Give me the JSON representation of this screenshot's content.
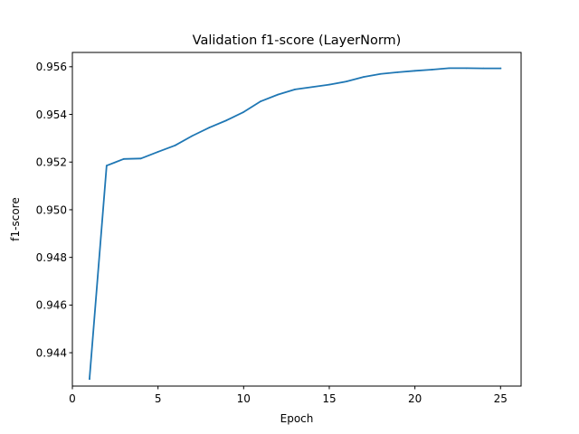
{
  "chart_data": {
    "type": "line",
    "title": "Validation f1-score (LayerNorm)",
    "xlabel": "Epoch",
    "ylabel": "f1-score",
    "xlim": [
      0,
      26.2
    ],
    "ylim": [
      0.9426,
      0.9566
    ],
    "xticks": [
      0,
      5,
      10,
      15,
      20,
      25
    ],
    "yticks": [
      0.944,
      0.946,
      0.948,
      0.95,
      0.952,
      0.954,
      0.956
    ],
    "xtick_labels": [
      "0",
      "5",
      "10",
      "15",
      "20",
      "25"
    ],
    "ytick_labels": [
      "0.944",
      "0.946",
      "0.948",
      "0.950",
      "0.952",
      "0.954",
      "0.956"
    ],
    "grid": false,
    "series": [
      {
        "name": "f1-score",
        "color": "#1f77b4",
        "x": [
          1,
          2,
          3,
          4,
          5,
          6,
          7,
          8,
          9,
          10,
          11,
          12,
          13,
          14,
          15,
          16,
          17,
          18,
          19,
          20,
          21,
          22,
          23,
          24,
          25
        ],
        "y": [
          0.9429,
          0.95185,
          0.95213,
          0.95215,
          0.95243,
          0.9527,
          0.9531,
          0.95345,
          0.95375,
          0.9541,
          0.95455,
          0.95483,
          0.95505,
          0.95515,
          0.95525,
          0.95538,
          0.95557,
          0.9557,
          0.95577,
          0.95583,
          0.95588,
          0.95594,
          0.95594,
          0.95593,
          0.95593
        ]
      }
    ]
  }
}
